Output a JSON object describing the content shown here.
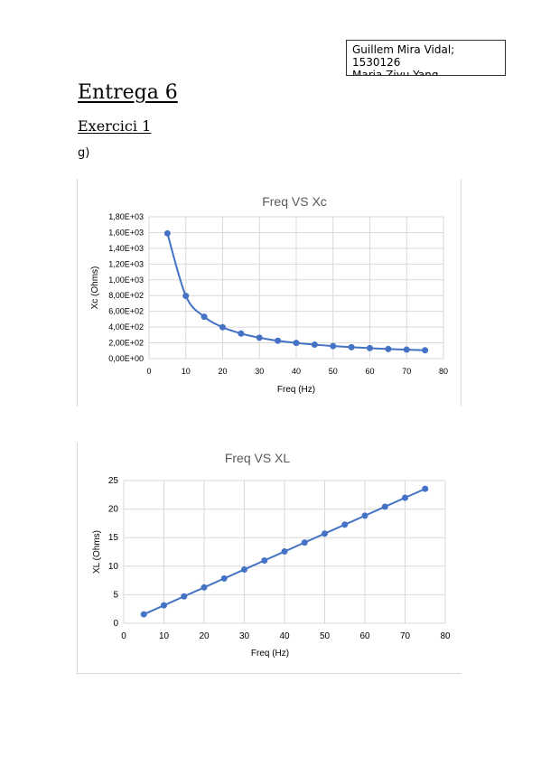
{
  "header": {
    "author_lines": [
      "Guillem Mira Vidal;",
      "1530126",
      "Maria Ziyu Yang"
    ]
  },
  "document": {
    "title": "Entrega 6",
    "section": "Exercici 1",
    "paragraph": "g)"
  },
  "colors": {
    "series": "#4472c4",
    "grid": "#d9d9d9",
    "axis_text": "#595959"
  },
  "chart_data": [
    {
      "type": "scatter",
      "line_style": "smooth",
      "title": "Freq VS Xc",
      "xlabel": "Freq (Hz)",
      "ylabel": "Xc (Ohms)",
      "xlim": [
        0,
        80
      ],
      "ylim": [
        0,
        1800
      ],
      "x_ticks": [
        0,
        10,
        20,
        30,
        40,
        50,
        60,
        70,
        80
      ],
      "y_ticks": [
        0,
        200,
        400,
        600,
        800,
        1000,
        1200,
        1400,
        1600,
        1800
      ],
      "x_tick_labels": [
        "0",
        "10",
        "20",
        "30",
        "40",
        "50",
        "60",
        "70",
        "80"
      ],
      "y_tick_labels": [
        "0,00E+00",
        "2,00E+02",
        "4,00E+02",
        "6,00E+02",
        "8,00E+02",
        "1,00E+03",
        "1,20E+03",
        "1,40E+03",
        "1,60E+03",
        "1,80E+03"
      ],
      "grid": true,
      "series": [
        {
          "x": [
            5,
            10,
            15,
            20,
            25,
            30,
            35,
            40,
            45,
            50,
            55,
            60,
            65,
            70,
            75
          ],
          "y": [
            1590,
            796,
            531,
            398,
            318,
            265,
            227,
            199,
            177,
            159,
            145,
            133,
            122,
            114,
            106
          ]
        }
      ]
    },
    {
      "type": "scatter",
      "line_style": "straight",
      "title": "Freq VS XL",
      "xlabel": "Freq (Hz)",
      "ylabel": "XL (Ohms)",
      "xlim": [
        0,
        80
      ],
      "ylim": [
        0,
        25
      ],
      "x_ticks": [
        0,
        10,
        20,
        30,
        40,
        50,
        60,
        70,
        80
      ],
      "y_ticks": [
        0,
        5,
        10,
        15,
        20,
        25
      ],
      "x_tick_labels": [
        "0",
        "10",
        "20",
        "30",
        "40",
        "50",
        "60",
        "70",
        "80"
      ],
      "y_tick_labels": [
        "0",
        "5",
        "10",
        "15",
        "20",
        "25"
      ],
      "grid": true,
      "series": [
        {
          "x": [
            5,
            10,
            15,
            20,
            25,
            30,
            35,
            40,
            45,
            50,
            55,
            60,
            65,
            70,
            75
          ],
          "y": [
            1.57,
            3.14,
            4.71,
            6.28,
            7.85,
            9.42,
            11.0,
            12.57,
            14.14,
            15.71,
            17.28,
            18.85,
            20.42,
            21.99,
            23.56
          ]
        }
      ]
    }
  ]
}
